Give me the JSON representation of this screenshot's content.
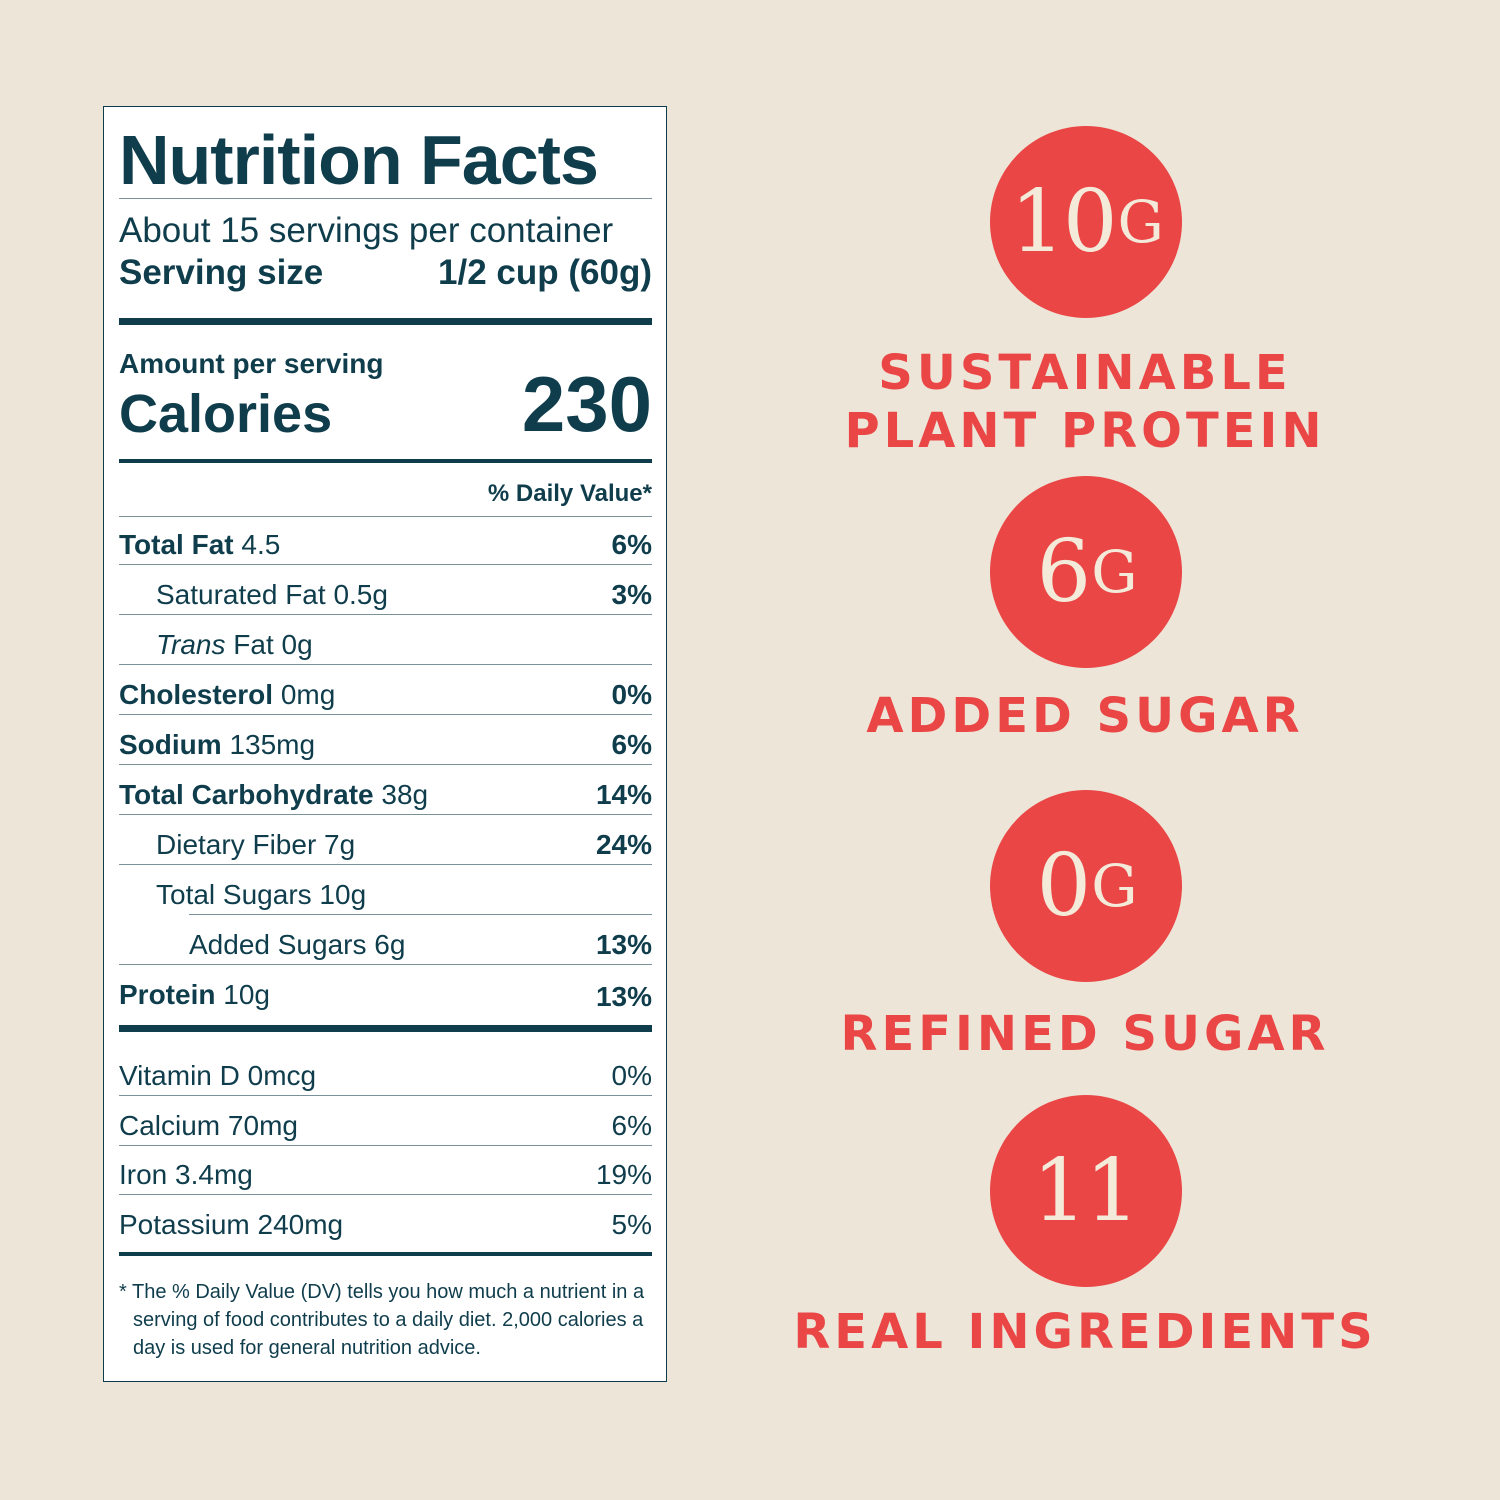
{
  "label": {
    "title": "Nutrition Facts",
    "servings_per_container": "About 15 servings per container",
    "serving_size_label": "Serving size",
    "serving_size_value": "1/2 cup (60g)",
    "amount_per_serving": "Amount per serving",
    "calories_label": "Calories",
    "calories_value": "230",
    "daily_value_header": "% Daily Value*",
    "nutrients": [
      {
        "name": "Total Fat",
        "amount": "4.5",
        "dv": "6%"
      },
      {
        "name": "Saturated Fat",
        "amount": "0.5g",
        "dv": "3%"
      },
      {
        "name": "Trans",
        "amount": "Fat 0g",
        "dv": ""
      },
      {
        "name": "Cholesterol",
        "amount": "0mg",
        "dv": "0%"
      },
      {
        "name": "Sodium",
        "amount": "135mg",
        "dv": "6%"
      },
      {
        "name": "Total Carbohydrate",
        "amount": "38g",
        "dv": "14%"
      },
      {
        "name": "Dietary Fiber",
        "amount": "7g",
        "dv": "24%"
      },
      {
        "name": "Total Sugars",
        "amount": "10g",
        "dv": ""
      },
      {
        "name": "Added Sugars",
        "amount": "6g",
        "dv": "13%"
      },
      {
        "name": "Protein",
        "amount": "10g",
        "dv": "13%"
      }
    ],
    "vitamins": [
      {
        "name": "Vitamin D",
        "amount": "0mcg",
        "dv": "0%"
      },
      {
        "name": "Calcium",
        "amount": "70mg",
        "dv": "6%"
      },
      {
        "name": "Iron",
        "amount": "3.4mg",
        "dv": "19%"
      },
      {
        "name": "Potassium",
        "amount": "240mg",
        "dv": "5%"
      }
    ],
    "footnote_star": "*",
    "footnote": "The % Daily Value (DV) tells you how much a nutrient in a serving of food contributes to a daily diet. 2,000 calories a day is used for general nutrition advice."
  },
  "highlights": [
    {
      "value": "10",
      "unit": "G",
      "caption_line1": "SUSTAINABLE",
      "caption_line2": "PLANT PROTEIN"
    },
    {
      "value": "6",
      "unit": "G",
      "caption_line1": "ADDED SUGAR",
      "caption_line2": ""
    },
    {
      "value": "0",
      "unit": "G",
      "caption_line1": "REFINED SUGAR",
      "caption_line2": ""
    },
    {
      "value": "11",
      "unit": "",
      "caption_line1": "REAL INGREDIENTS",
      "caption_line2": ""
    }
  ],
  "colors": {
    "background": "#ede5d8",
    "label_ink": "#0f3d4c",
    "accent": "#ea4646",
    "accent_text": "#f4ead9"
  }
}
